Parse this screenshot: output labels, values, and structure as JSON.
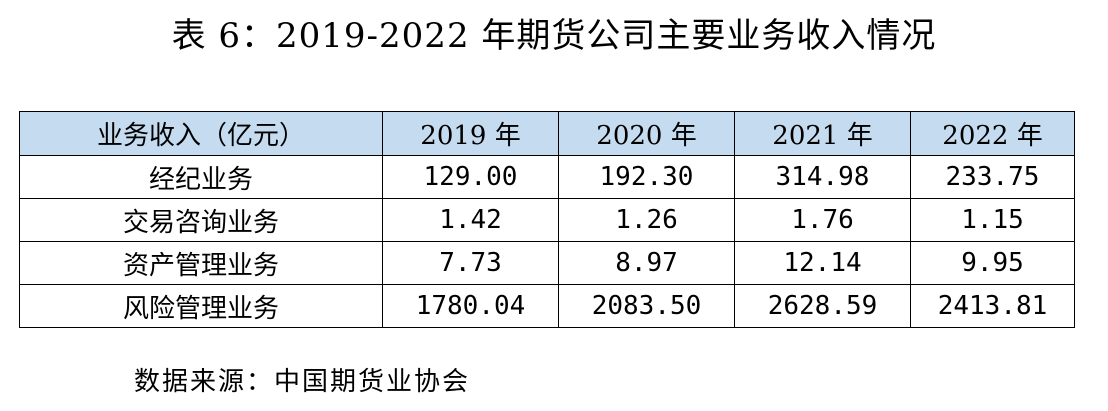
{
  "title": "表 6：2019-2022 年期货公司主要业务收入情况",
  "table": {
    "headers": [
      "业务收入（亿元）",
      "2019 年",
      "2020 年",
      "2021 年",
      "2022 年"
    ],
    "rows": [
      {
        "label": "经纪业务",
        "values": [
          "129.00",
          "192.30",
          "314.98",
          "233.75"
        ]
      },
      {
        "label": "交易咨询业务",
        "values": [
          "1.42",
          "1.26",
          "1.76",
          "1.15"
        ]
      },
      {
        "label": "资产管理业务",
        "values": [
          "7.73",
          "8.97",
          "12.14",
          "9.95"
        ]
      },
      {
        "label": "风险管理业务",
        "values": [
          "1780.04",
          "2083.50",
          "2628.59",
          "2413.81"
        ]
      }
    ]
  },
  "source": "数据来源：中国期货业协会",
  "colors": {
    "header_background": "#c5dcf0",
    "border": "#000000"
  }
}
